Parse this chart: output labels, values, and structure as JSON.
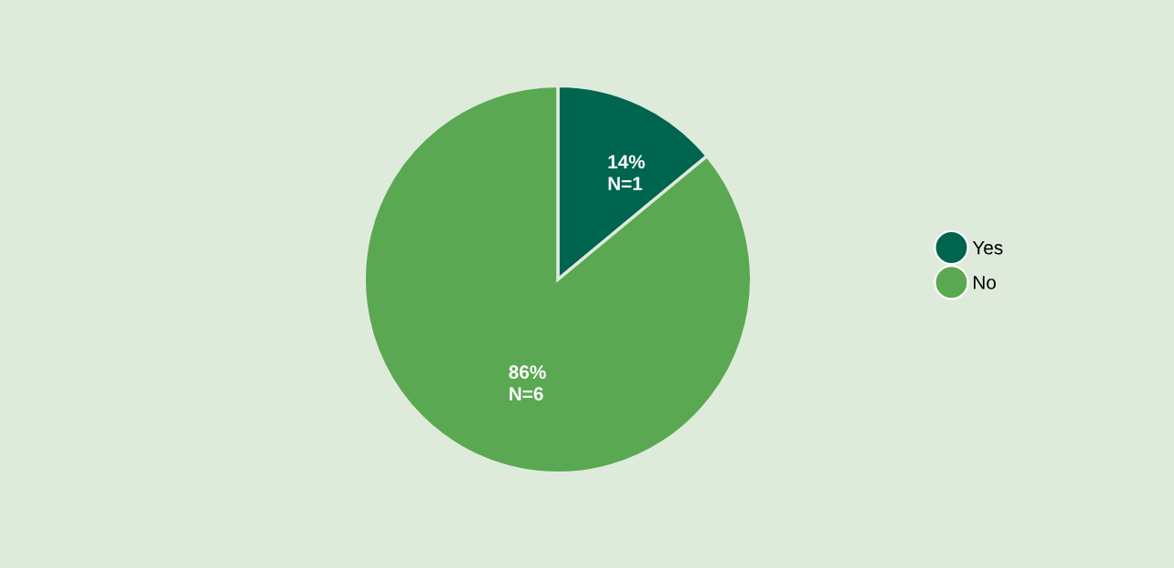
{
  "chart_data": {
    "type": "pie",
    "categories": [
      "Yes",
      "No"
    ],
    "values": [
      14,
      86
    ],
    "colors": [
      "#00654f",
      "#5aa852"
    ],
    "value_labels": [
      "14%\nN=1",
      "86%\nN=6"
    ],
    "legend": "right"
  }
}
